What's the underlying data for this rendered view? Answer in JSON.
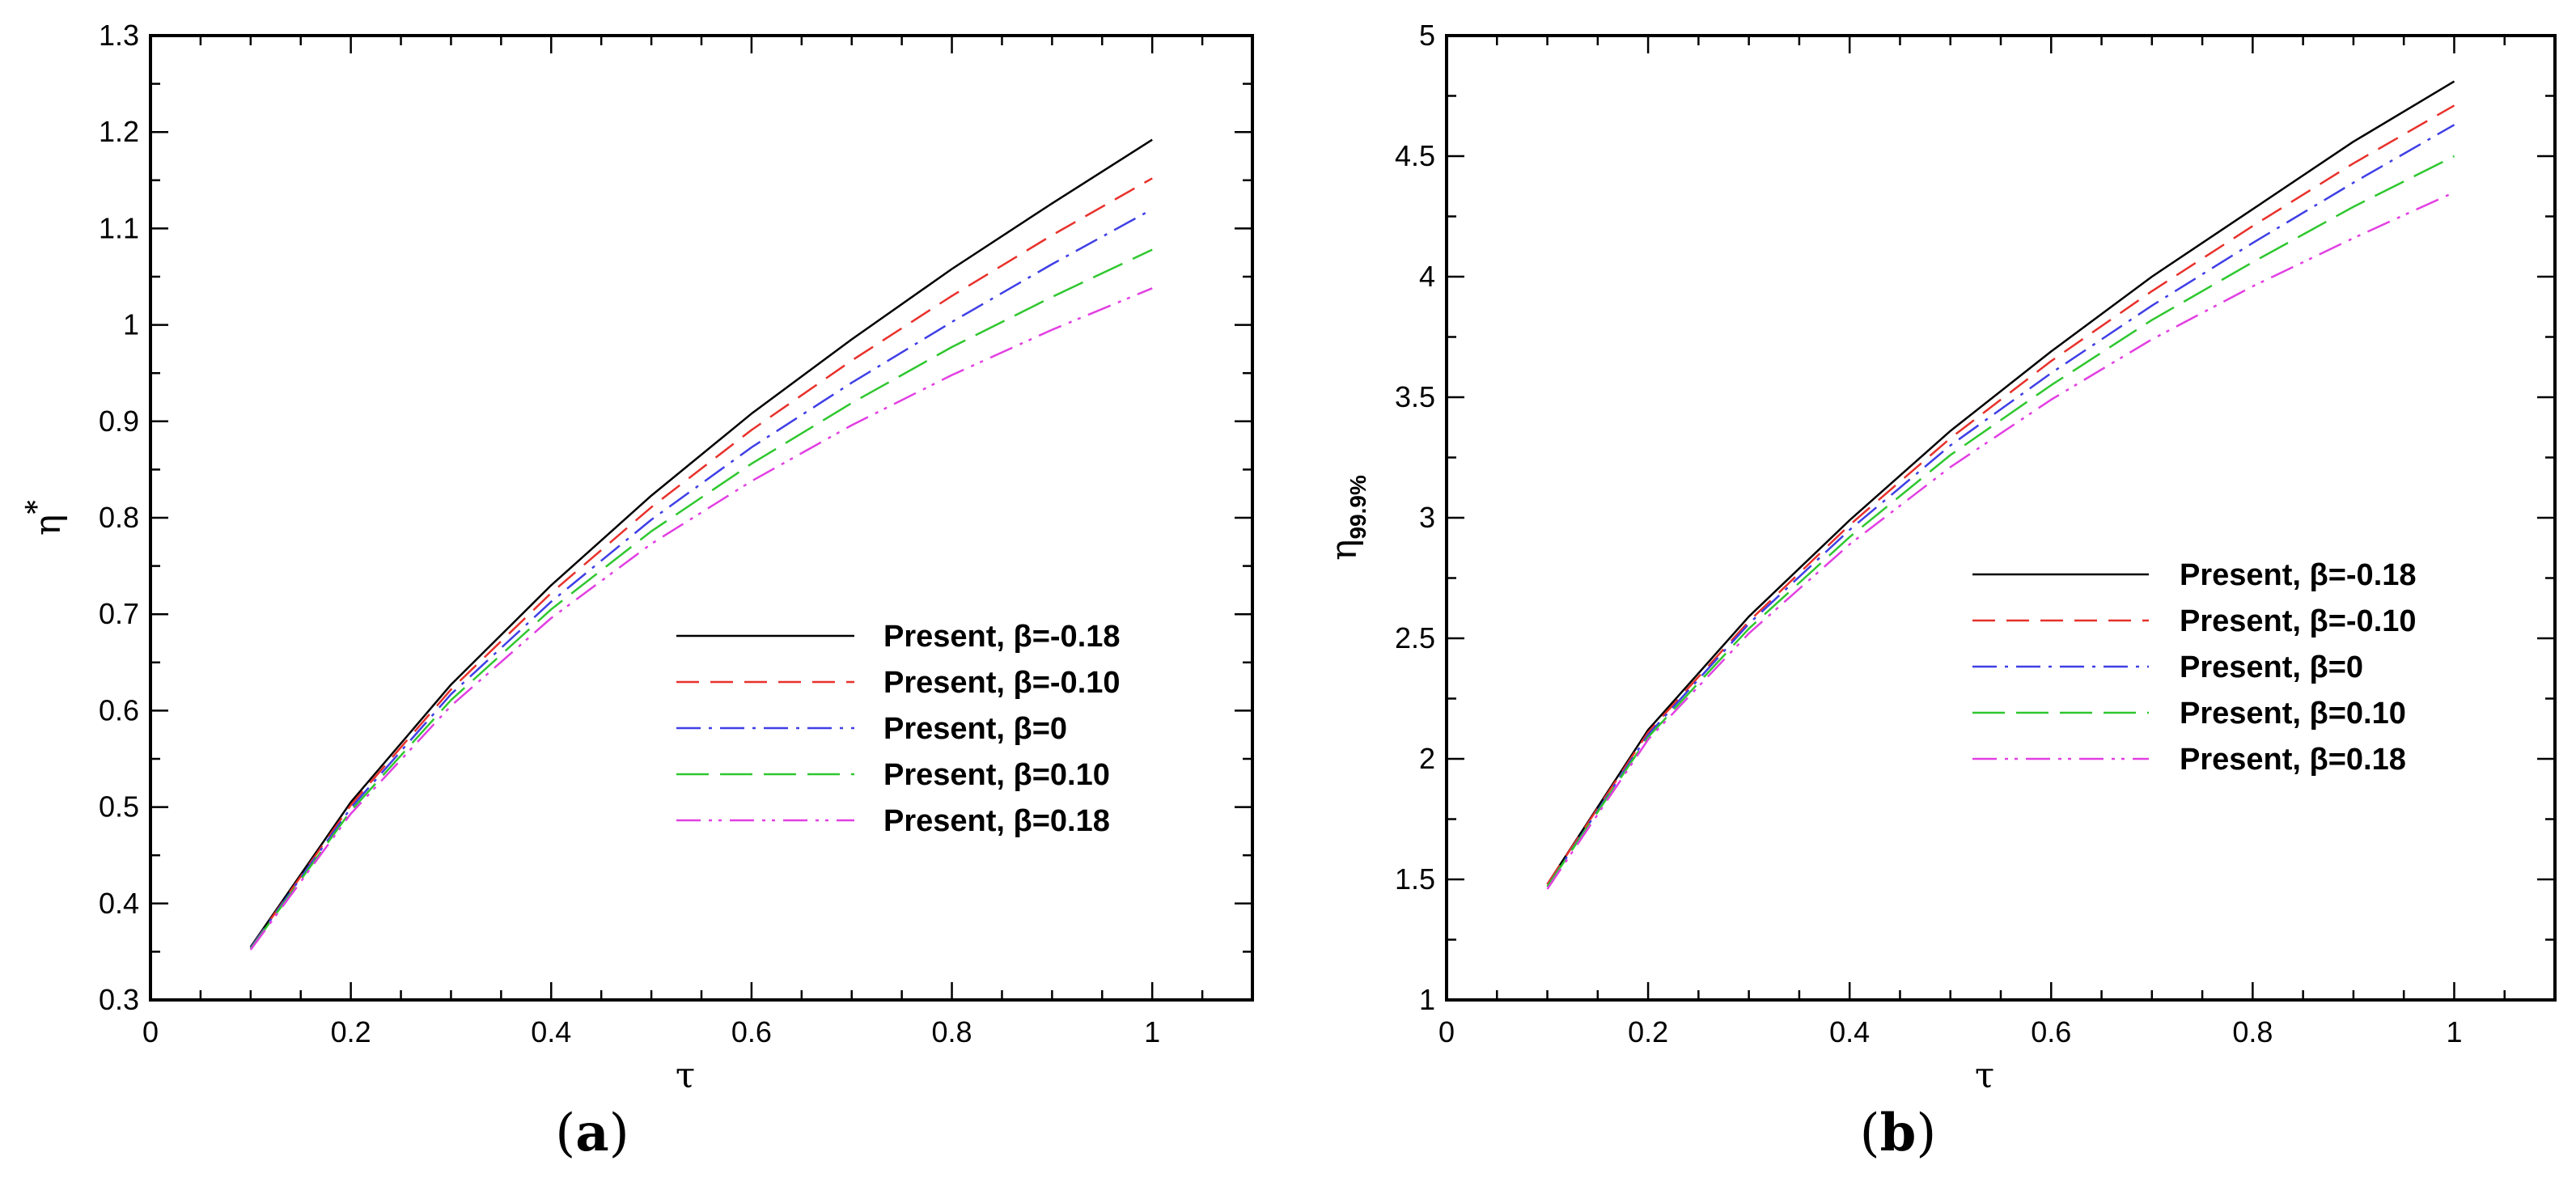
{
  "chart_data": [
    {
      "type": "line",
      "panel": "(a)",
      "panel_label": "a",
      "xlabel": "τ",
      "ylabel_main": "η",
      "ylabel_sup": "*",
      "xlim": [
        0,
        1.1
      ],
      "ylim": [
        0.3,
        1.3
      ],
      "xticks": [
        0,
        0.2,
        0.4,
        0.6,
        0.8,
        1
      ],
      "xtick_labels": [
        "0",
        "0.2",
        "0.4",
        "0.6",
        "0.8",
        "1"
      ],
      "yticks": [
        0.3,
        0.4,
        0.5,
        0.6,
        0.7,
        0.8,
        0.9,
        1.0,
        1.1,
        1.2,
        1.3
      ],
      "ytick_labels": [
        "0.3",
        "0.4",
        "0.5",
        "0.6",
        "0.7",
        "0.8",
        "0.9",
        "1",
        "1.1",
        "1.2",
        "1.3"
      ],
      "legend_position": "lower-right",
      "x": [
        0.1,
        0.2,
        0.3,
        0.4,
        0.5,
        0.6,
        0.7,
        0.8,
        0.9,
        1.0
      ],
      "series": [
        {
          "name": "Present, β=-0.18",
          "values": [
            0.355,
            0.505,
            0.627,
            0.73,
            0.823,
            0.908,
            0.985,
            1.058,
            1.126,
            1.192
          ]
        },
        {
          "name": "Present, β=-0.10",
          "values": [
            0.354,
            0.502,
            0.622,
            0.722,
            0.811,
            0.891,
            0.963,
            1.03,
            1.093,
            1.152
          ]
        },
        {
          "name": "Present, β=0",
          "values": [
            0.354,
            0.499,
            0.617,
            0.713,
            0.798,
            0.873,
            0.94,
            1.003,
            1.063,
            1.12
          ]
        },
        {
          "name": "Present, β=0.10",
          "values": [
            0.353,
            0.496,
            0.611,
            0.705,
            0.786,
            0.856,
            0.919,
            0.977,
            1.029,
            1.078
          ]
        },
        {
          "name": "Present, β=0.18",
          "values": [
            0.352,
            0.493,
            0.605,
            0.696,
            0.773,
            0.838,
            0.896,
            0.948,
            0.995,
            1.038
          ]
        }
      ]
    },
    {
      "type": "line",
      "panel": "(b)",
      "panel_label": "b",
      "xlabel": "τ",
      "ylabel_main": "η",
      "ylabel_sub": "99.9%",
      "xlim": [
        0,
        1.1
      ],
      "ylim": [
        1,
        5
      ],
      "xticks": [
        0,
        0.2,
        0.4,
        0.6,
        0.8,
        1
      ],
      "xtick_labels": [
        "0",
        "0.2",
        "0.4",
        "0.6",
        "0.8",
        "1"
      ],
      "yticks": [
        1,
        1.5,
        2,
        2.5,
        3,
        3.5,
        4,
        4.5,
        5
      ],
      "ytick_labels": [
        "1",
        "1.5",
        "2",
        "2.5",
        "3",
        "3.5",
        "4",
        "4.5",
        "5"
      ],
      "legend_position": "center-right",
      "x": [
        0.1,
        0.2,
        0.3,
        0.4,
        0.5,
        0.6,
        0.7,
        0.8,
        0.9,
        1.0
      ],
      "series": [
        {
          "name": "Present, β=-0.18",
          "values": [
            1.48,
            2.12,
            2.59,
            2.99,
            3.36,
            3.69,
            4.0,
            4.28,
            4.56,
            4.81
          ]
        },
        {
          "name": "Present, β=-0.10",
          "values": [
            1.48,
            2.11,
            2.57,
            2.97,
            3.33,
            3.65,
            3.94,
            4.21,
            4.47,
            4.71
          ]
        },
        {
          "name": "Present, β=0",
          "values": [
            1.47,
            2.1,
            2.56,
            2.95,
            3.3,
            3.6,
            3.88,
            4.14,
            4.39,
            4.63
          ]
        },
        {
          "name": "Present, β=0.10",
          "values": [
            1.47,
            2.09,
            2.54,
            2.92,
            3.26,
            3.55,
            3.82,
            4.06,
            4.29,
            4.5
          ]
        },
        {
          "name": "Present, β=0.18",
          "values": [
            1.46,
            2.08,
            2.52,
            2.89,
            3.21,
            3.49,
            3.74,
            3.96,
            4.16,
            4.35
          ]
        }
      ]
    }
  ],
  "series_colors": [
    "#000000",
    "#e8312b",
    "#3f3fe6",
    "#2fc72f",
    "#e23fe2"
  ]
}
